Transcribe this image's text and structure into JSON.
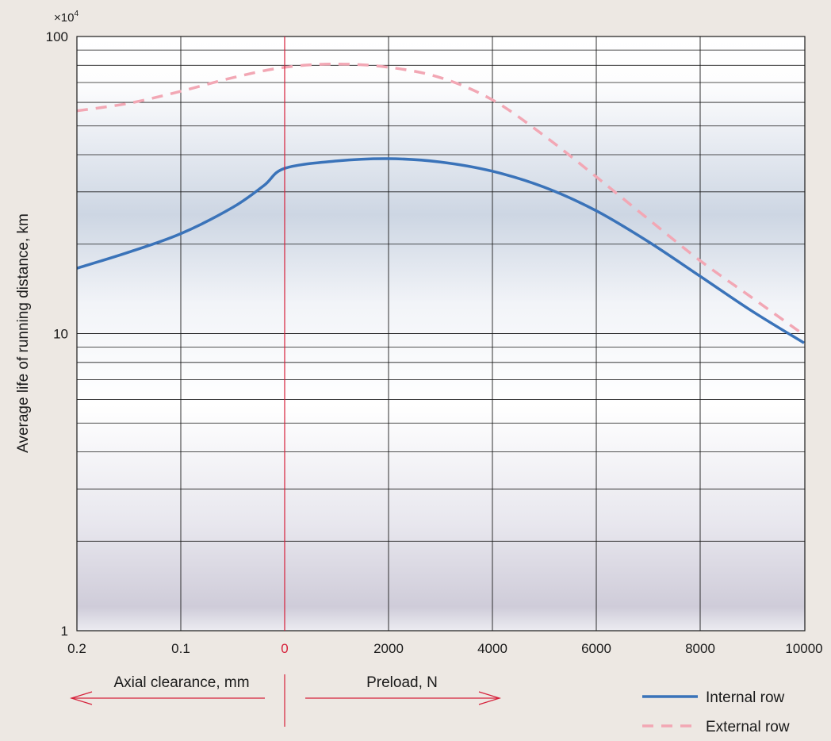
{
  "chart_data": {
    "type": "line",
    "y_multiplier_label": "×10",
    "y_multiplier_exp": "4",
    "ylabel": "Average life of running distance, km",
    "yscale": "log",
    "ylim": [
      1,
      100
    ],
    "y_ticks": [
      {
        "value": 1,
        "label": "1"
      },
      {
        "value": 10,
        "label": "10"
      },
      {
        "value": 100,
        "label": "100"
      }
    ],
    "x_ticks": [
      "0.2",
      "0.1",
      "0",
      "2000",
      "4000",
      "6000",
      "8000",
      "10000"
    ],
    "x_tick_colors": [
      "#1a1a1a",
      "#1a1a1a",
      "#d6203a",
      "#1a1a1a",
      "#1a1a1a",
      "#1a1a1a",
      "#1a1a1a",
      "#1a1a1a"
    ],
    "x_segments": [
      {
        "name": "Axial clearance, mm",
        "range": [
          0.2,
          0
        ]
      },
      {
        "name": "Preload, N",
        "range": [
          0,
          10000
        ]
      }
    ],
    "grid": true,
    "series": [
      {
        "name": "Internal row",
        "color": "#3a73b9",
        "dash": "solid",
        "points": [
          {
            "x": "0.2",
            "y": 16.6
          },
          {
            "x": "0.15",
            "y": 18.8
          },
          {
            "x": "0.1",
            "y": 21.7
          },
          {
            "x": "0.05",
            "y": 26.6
          },
          {
            "x": "0.02",
            "y": 31.5
          },
          {
            "x": "0",
            "y": 36
          },
          {
            "x": "1000",
            "y": 38.1
          },
          {
            "x": "2000",
            "y": 38.8
          },
          {
            "x": "3000",
            "y": 37.8
          },
          {
            "x": "4000",
            "y": 35.2
          },
          {
            "x": "5000",
            "y": 31.1
          },
          {
            "x": "6000",
            "y": 25.9
          },
          {
            "x": "7000",
            "y": 20.4
          },
          {
            "x": "8000",
            "y": 15.6
          },
          {
            "x": "9000",
            "y": 11.9
          },
          {
            "x": "10000",
            "y": 9.3
          }
        ]
      },
      {
        "name": "External row",
        "color": "#f2a7b4",
        "dash": "dashed",
        "points": [
          {
            "x": "0.2",
            "y": 56.2
          },
          {
            "x": "0.15",
            "y": 59.6
          },
          {
            "x": "0.1",
            "y": 65.4
          },
          {
            "x": "0.05",
            "y": 72.7
          },
          {
            "x": "0",
            "y": 78.8
          },
          {
            "x": "1000",
            "y": 80.8
          },
          {
            "x": "2000",
            "y": 78.8
          },
          {
            "x": "3000",
            "y": 72.7
          },
          {
            "x": "4000",
            "y": 61.2
          },
          {
            "x": "5000",
            "y": 46.3
          },
          {
            "x": "6000",
            "y": 33.7
          },
          {
            "x": "7000",
            "y": 24.3
          },
          {
            "x": "8000",
            "y": 17.6
          },
          {
            "x": "9000",
            "y": 13.2
          },
          {
            "x": "10000",
            "y": 9.9
          }
        ]
      }
    ],
    "legend_position": "bottom-right"
  }
}
